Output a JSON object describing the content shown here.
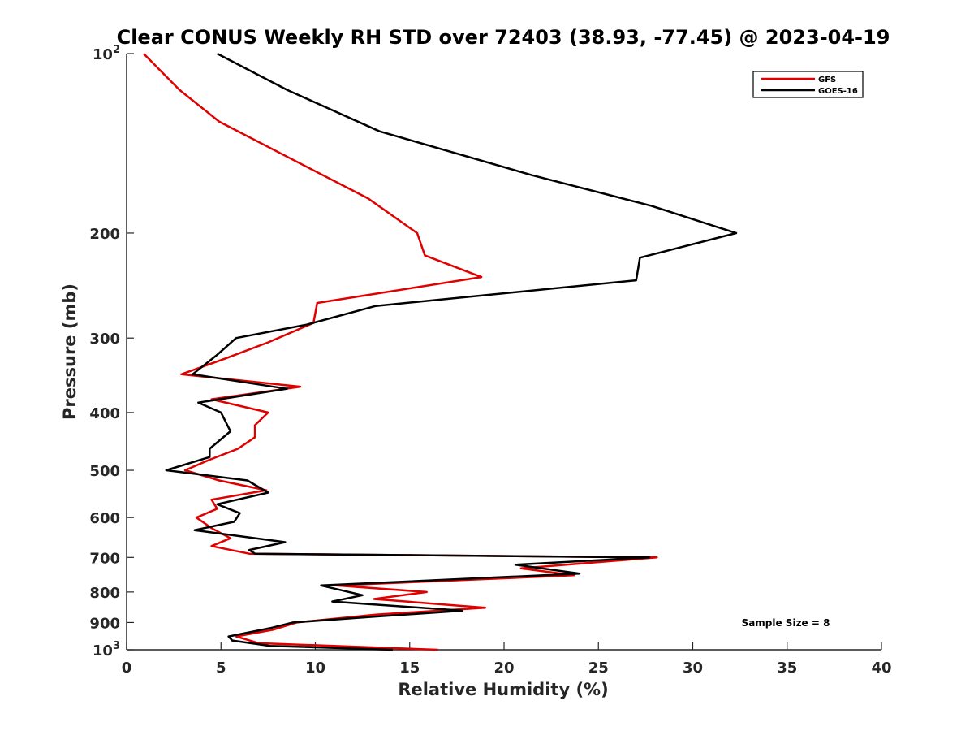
{
  "chart_data": {
    "type": "line",
    "title": "Clear CONUS Weekly RH STD over 72403 (38.93, -77.45) @ 2023-04-19",
    "xlabel": "Relative Humidity (%)",
    "ylabel": "Pressure (mb)",
    "xlim": [
      0,
      40
    ],
    "ylim": [
      100,
      1000
    ],
    "y_scale": "log",
    "y_reversed": true,
    "grid": false,
    "x_ticks": [
      0,
      5,
      10,
      15,
      20,
      25,
      30,
      35,
      40
    ],
    "x_tick_labels": [
      "0",
      "5",
      "10",
      "15",
      "20",
      "25",
      "30",
      "35",
      "40"
    ],
    "y_ticks": [
      100,
      200,
      300,
      400,
      500,
      600,
      700,
      800,
      900,
      1000
    ],
    "y_tick_labels": [
      {
        "base": "10",
        "exp": "2"
      },
      {
        "base": "200",
        "exp": ""
      },
      {
        "base": "300",
        "exp": ""
      },
      {
        "base": "400",
        "exp": ""
      },
      {
        "base": "500",
        "exp": ""
      },
      {
        "base": "600",
        "exp": ""
      },
      {
        "base": "700",
        "exp": ""
      },
      {
        "base": "800",
        "exp": ""
      },
      {
        "base": "900",
        "exp": ""
      },
      {
        "base": "10",
        "exp": "3"
      }
    ],
    "legend_position": "top-right",
    "annotation": "Sample Size = 8",
    "series": [
      {
        "name": "GFS",
        "color": "#e00000",
        "points": [
          [
            0.9,
            100
          ],
          [
            2.8,
            115
          ],
          [
            4.9,
            130
          ],
          [
            8.7,
            150
          ],
          [
            12.8,
            175
          ],
          [
            15.4,
            200
          ],
          [
            15.8,
            218
          ],
          [
            18.8,
            237
          ],
          [
            10.1,
            262
          ],
          [
            9.9,
            283
          ],
          [
            7.5,
            305
          ],
          [
            5.2,
            325
          ],
          [
            2.9,
            345
          ],
          [
            9.2,
            362
          ],
          [
            4.5,
            380
          ],
          [
            7.5,
            400
          ],
          [
            6.8,
            420
          ],
          [
            6.8,
            440
          ],
          [
            5.9,
            460
          ],
          [
            4.4,
            480
          ],
          [
            3.1,
            500
          ],
          [
            4.9,
            520
          ],
          [
            7.4,
            540
          ],
          [
            4.5,
            560
          ],
          [
            4.8,
            580
          ],
          [
            3.7,
            600
          ],
          [
            4.5,
            625
          ],
          [
            5.5,
            650
          ],
          [
            4.5,
            670
          ],
          [
            6.5,
            690
          ],
          [
            28.1,
            700
          ],
          [
            20.9,
            730
          ],
          [
            23.7,
            750
          ],
          [
            11.1,
            780
          ],
          [
            15.9,
            800
          ],
          [
            13.1,
            822
          ],
          [
            19.0,
            850
          ],
          [
            13.2,
            873
          ],
          [
            9.0,
            900
          ],
          [
            7.8,
            925
          ],
          [
            5.8,
            950
          ],
          [
            7.0,
            975
          ],
          [
            16.5,
            1000
          ]
        ]
      },
      {
        "name": "GOES-16",
        "color": "#000000",
        "points": [
          [
            4.8,
            100
          ],
          [
            8.5,
            115
          ],
          [
            13.4,
            135
          ],
          [
            21.5,
            160
          ],
          [
            27.8,
            180
          ],
          [
            32.3,
            200
          ],
          [
            27.2,
            220
          ],
          [
            27.0,
            240
          ],
          [
            13.2,
            265
          ],
          [
            9.5,
            285
          ],
          [
            5.8,
            300
          ],
          [
            4.8,
            320
          ],
          [
            3.5,
            345
          ],
          [
            8.5,
            365
          ],
          [
            3.8,
            385
          ],
          [
            5.0,
            400
          ],
          [
            5.5,
            430
          ],
          [
            4.4,
            460
          ],
          [
            4.4,
            475
          ],
          [
            2.1,
            500
          ],
          [
            6.4,
            520
          ],
          [
            7.5,
            545
          ],
          [
            4.8,
            570
          ],
          [
            6.0,
            590
          ],
          [
            5.7,
            610
          ],
          [
            3.6,
            630
          ],
          [
            8.4,
            660
          ],
          [
            6.5,
            680
          ],
          [
            6.8,
            690
          ],
          [
            27.7,
            700
          ],
          [
            20.6,
            720
          ],
          [
            24.0,
            745
          ],
          [
            10.3,
            780
          ],
          [
            12.5,
            810
          ],
          [
            10.9,
            830
          ],
          [
            17.8,
            860
          ],
          [
            13.1,
            880
          ],
          [
            8.8,
            900
          ],
          [
            7.6,
            920
          ],
          [
            5.4,
            950
          ],
          [
            5.6,
            965
          ],
          [
            7.6,
            985
          ],
          [
            14.1,
            1000
          ]
        ]
      }
    ]
  }
}
